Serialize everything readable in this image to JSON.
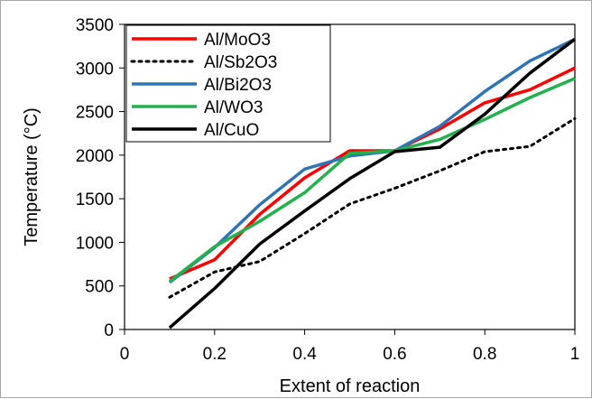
{
  "chart_data": {
    "type": "line",
    "xlabel": "Extent of reaction",
    "ylabel": "Temperature (°C)",
    "xlim": [
      0,
      1
    ],
    "ylim": [
      0,
      3500
    ],
    "x_ticks": [
      0,
      0.2,
      0.4,
      0.6,
      0.8,
      1
    ],
    "x_tick_labels": [
      "0",
      "0.2",
      "0.4",
      "0.6",
      "0.8",
      "1"
    ],
    "y_ticks": [
      0,
      500,
      1000,
      1500,
      2000,
      2500,
      3000,
      3500
    ],
    "y_tick_labels": [
      "0",
      "500",
      "1000",
      "1500",
      "2000",
      "2500",
      "3000",
      "3500"
    ],
    "grid": false,
    "legend_position": "top-left",
    "x": [
      0.1,
      0.2,
      0.3,
      0.4,
      0.5,
      0.6,
      0.7,
      0.8,
      0.9,
      1.0
    ],
    "series": [
      {
        "name": "Al/MoO3",
        "color": "#ff0000",
        "dash": "solid",
        "values": [
          580,
          800,
          1320,
          1740,
          2050,
          2050,
          2300,
          2600,
          2750,
          3000
        ]
      },
      {
        "name": "Al/Sb2O3",
        "color": "#000000",
        "dash": "dotted",
        "values": [
          370,
          660,
          780,
          1100,
          1440,
          1620,
          1820,
          2040,
          2100,
          2420
        ]
      },
      {
        "name": "Al/Bi2O3",
        "color": "#2e75b6",
        "dash": "solid",
        "values": [
          540,
          940,
          1430,
          1840,
          1990,
          2050,
          2330,
          2730,
          3080,
          3330
        ]
      },
      {
        "name": "Al/WO3",
        "color": "#22b14c",
        "dash": "solid",
        "values": [
          550,
          950,
          1240,
          1570,
          2020,
          2050,
          2180,
          2410,
          2660,
          2880
        ]
      },
      {
        "name": "Al/CuO",
        "color": "#000000",
        "dash": "solid",
        "values": [
          20,
          470,
          980,
          1360,
          1730,
          2040,
          2090,
          2470,
          2940,
          3330
        ]
      }
    ]
  }
}
